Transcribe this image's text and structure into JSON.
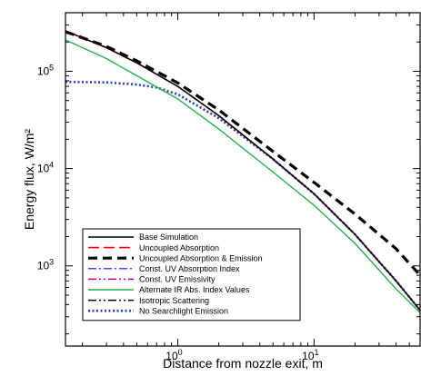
{
  "chart_data": {
    "type": "line",
    "xlabel": "Distance from nozzle exit, m",
    "ylabel": "Energy flux, W/m²",
    "xscale": "log",
    "yscale": "log",
    "xlim": [
      0.15,
      60
    ],
    "ylim": [
      150,
      400000
    ],
    "x_ticks": [
      {
        "value": 1,
        "label": "10",
        "exp": "0"
      },
      {
        "value": 10,
        "label": "10",
        "exp": "1"
      }
    ],
    "y_ticks": [
      {
        "value": 1000,
        "label": "10",
        "exp": "3"
      },
      {
        "value": 10000,
        "label": "10",
        "exp": "4"
      },
      {
        "value": 100000,
        "label": "10",
        "exp": "5"
      }
    ],
    "grid": false,
    "legend_position": "bottom-left",
    "series": [
      {
        "name": "Base Simulation",
        "color": "#000000",
        "dash": "solid",
        "x": [
          0.15,
          0.3,
          0.5,
          1,
          2,
          5,
          10,
          20,
          40,
          60
        ],
        "y": [
          260000,
          175000,
          122000,
          70000,
          35000,
          12500,
          5500,
          2100,
          700,
          350
        ]
      },
      {
        "name": "Uncoupled Absorption",
        "color": "#ff0000",
        "dash": "long-dash",
        "x": [
          0.15,
          0.3,
          0.5,
          1,
          2,
          5,
          10,
          20,
          40,
          60
        ],
        "y": [
          260000,
          175000,
          122000,
          70000,
          35000,
          12500,
          5500,
          2100,
          700,
          350
        ]
      },
      {
        "name": "Uncoupled Absorption & Emission",
        "color": "#000000",
        "dash": "heavy-dash",
        "x": [
          0.15,
          0.3,
          0.5,
          1,
          2,
          5,
          10,
          20,
          40,
          60
        ],
        "y": [
          255000,
          180000,
          128000,
          76000,
          40000,
          15000,
          7200,
          3400,
          1500,
          800
        ]
      },
      {
        "name": "Const. UV Absorption Index",
        "color": "#4a4aff",
        "dash": "dash-dot",
        "x": [
          0.15,
          0.3,
          0.5,
          1,
          2,
          5,
          10,
          20,
          40,
          60
        ],
        "y": [
          260000,
          175000,
          122000,
          70000,
          35000,
          12500,
          5500,
          2100,
          700,
          350
        ]
      },
      {
        "name": "Const. UV Emissivity",
        "color": "#b000b0",
        "dash": "dash-dot-dot",
        "x": [
          0.15,
          0.3,
          0.5,
          1,
          2,
          5,
          10,
          20,
          40,
          60
        ],
        "y": [
          260000,
          175000,
          122000,
          70000,
          35000,
          12500,
          5500,
          2100,
          700,
          350
        ]
      },
      {
        "name": "Alternate IR Abs. Index Values",
        "color": "#22b14c",
        "dash": "solid",
        "x": [
          0.15,
          0.3,
          0.5,
          1,
          2,
          5,
          10,
          20,
          40,
          60
        ],
        "y": [
          210000,
          135000,
          90000,
          52000,
          25500,
          9200,
          4200,
          1700,
          580,
          330
        ]
      },
      {
        "name": "Isotropic Scattering",
        "color": "#000000",
        "dash": "dash-dot-dot",
        "x": [
          0.15,
          0.3,
          0.5,
          1,
          2,
          5,
          10,
          20,
          40,
          60
        ],
        "y": [
          260000,
          175000,
          122000,
          70000,
          35000,
          12500,
          5500,
          2100,
          700,
          350
        ]
      },
      {
        "name": "No Searchlight Emission",
        "color": "#1f3fbf",
        "dash": "dotted",
        "x": [
          0.15,
          0.3,
          0.5,
          0.7,
          1,
          2,
          5,
          10,
          20,
          40,
          60
        ],
        "y": [
          78000,
          77000,
          73000,
          68000,
          58000,
          33000,
          12500,
          5500,
          2100,
          700,
          350
        ]
      }
    ]
  }
}
